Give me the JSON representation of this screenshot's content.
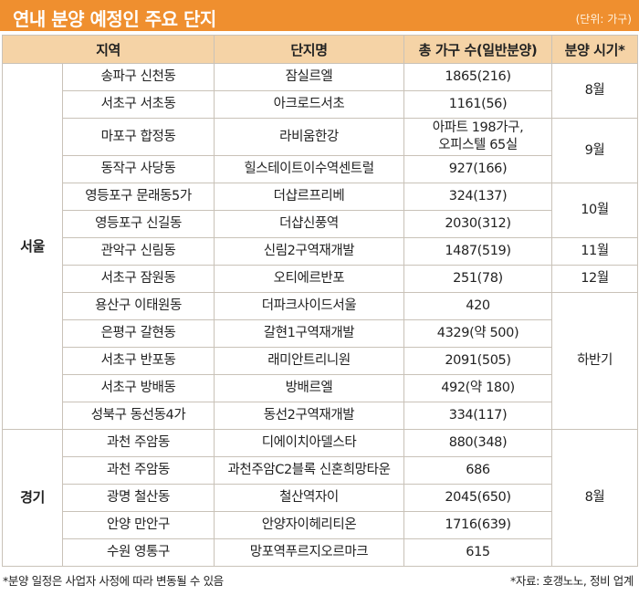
{
  "header": {
    "title": "연내 분양 예정인 주요 단지",
    "unit": "(단위: 가구)"
  },
  "columns": [
    "지역",
    "",
    "단지명",
    "총 가구 수(일반분양)",
    "분양 시기*"
  ],
  "regions": {
    "seoul": "서울",
    "gyeonggi": "경기"
  },
  "periods": {
    "p1": "8월",
    "p2": "9월",
    "p3": "10월",
    "p4": "11월",
    "p5": "12월",
    "p6": "하반기",
    "p7": "8월"
  },
  "rows": [
    {
      "district": "송파구 신천동",
      "complex": "잠실르엘",
      "units": "1865(216)"
    },
    {
      "district": "서초구 서초동",
      "complex": "아크로드서초",
      "units": "1161(56)"
    },
    {
      "district": "마포구 합정동",
      "complex": "라비움한강",
      "units": "아파트 198가구,",
      "units2": "오피스텔 65실"
    },
    {
      "district": "동작구 사당동",
      "complex": "힐스테이트이수역센트럴",
      "units": "927(166)"
    },
    {
      "district": "영등포구 문래동5가",
      "complex": "더샵르프리베",
      "units": "324(137)"
    },
    {
      "district": "영등포구 신길동",
      "complex": "더샵신풍역",
      "units": "2030(312)"
    },
    {
      "district": "관악구 신림동",
      "complex": "신림2구역재개발",
      "units": "1487(519)"
    },
    {
      "district": "서초구 잠원동",
      "complex": "오티에르반포",
      "units": "251(78)"
    },
    {
      "district": "용산구 이태원동",
      "complex": "더파크사이드서울",
      "units": "420"
    },
    {
      "district": "은평구 갈현동",
      "complex": "갈현1구역재개발",
      "units": "4329(약 500)"
    },
    {
      "district": "서초구 반포동",
      "complex": "래미안트리니원",
      "units": "2091(505)"
    },
    {
      "district": "서초구 방배동",
      "complex": "방배르엘",
      "units": "492(약 180)"
    },
    {
      "district": "성북구 동선동4가",
      "complex": "동선2구역재개발",
      "units": "334(117)"
    },
    {
      "district": "과천 주암동",
      "complex": "디에이치아델스타",
      "units": "880(348)"
    },
    {
      "district": "과천 주암동",
      "complex": "과천주암C2블록 신혼희망타운",
      "units": "686"
    },
    {
      "district": "광명 철산동",
      "complex": "철산역자이",
      "units": "2045(650)"
    },
    {
      "district": "안양 만안구",
      "complex": "안양자이헤리티온",
      "units": "1716(639)"
    },
    {
      "district": "수원 영통구",
      "complex": "망포역푸르지오르마크",
      "units": "615"
    }
  ],
  "footer": {
    "note": "*분양 일정은 사업자 사정에 따라 변동될 수 있음",
    "source": "*자료: 호갱노노, 정비 업계"
  }
}
